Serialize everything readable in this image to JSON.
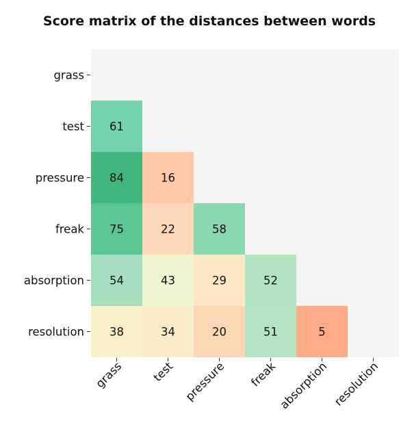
{
  "chart_data": {
    "type": "heatmap",
    "title": "Score matrix of the distances between words",
    "rows": [
      "grass",
      "test",
      "pressure",
      "freak",
      "absorption",
      "resolution"
    ],
    "cols": [
      "grass",
      "test",
      "pressure",
      "freak",
      "absorption",
      "resolution"
    ],
    "mask": "upper triangle including diagonal",
    "values": [
      [
        null,
        null,
        null,
        null,
        null,
        null
      ],
      [
        61,
        null,
        null,
        null,
        null,
        null
      ],
      [
        84,
        16,
        null,
        null,
        null,
        null
      ],
      [
        75,
        22,
        58,
        null,
        null,
        null
      ],
      [
        54,
        43,
        29,
        52,
        null,
        null
      ],
      [
        38,
        34,
        20,
        51,
        5,
        null
      ]
    ],
    "grid": false,
    "colors": {
      "background": "#f4f4f4",
      "cells": [
        [
          null,
          null,
          null,
          null,
          null,
          null
        ],
        [
          "#74d2ad",
          null,
          null,
          null,
          null,
          null
        ],
        [
          "#3fb77d",
          "#ffc9a8",
          null,
          null,
          null,
          null
        ],
        [
          "#5cc594",
          "#fed8b8",
          "#88d8b0",
          null,
          null,
          null
        ],
        [
          "#a4e0c0",
          "#eff5d1",
          "#fde7c4",
          "#b2e4c1",
          null,
          null
        ],
        [
          "#faf1cb",
          "#fbedc7",
          "#fdd6b6",
          "#b4e4c2",
          "#fdab86",
          null
        ]
      ]
    }
  }
}
